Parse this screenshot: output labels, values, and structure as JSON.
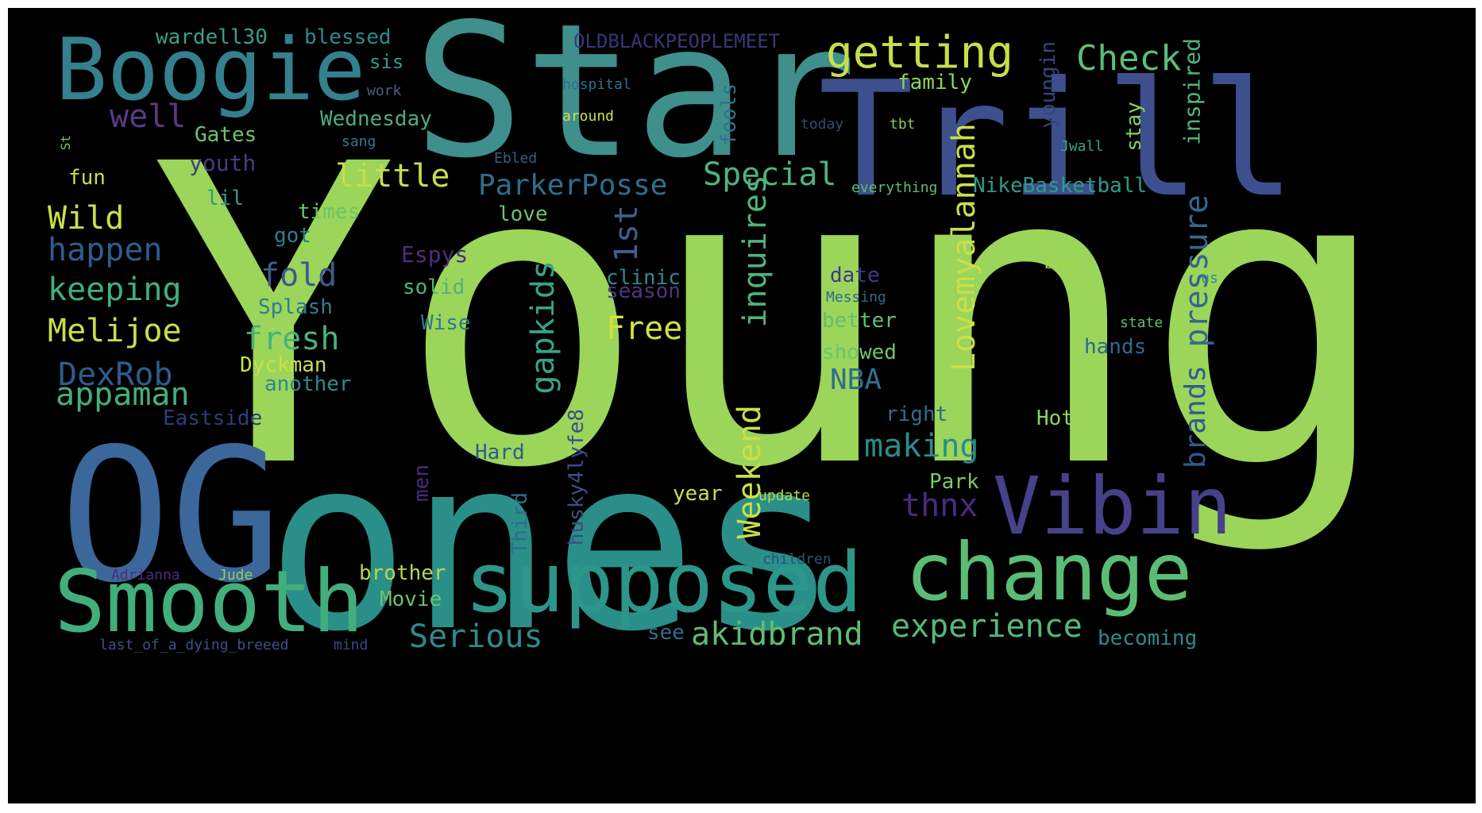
{
  "palette": {
    "page_background": "#ffffff",
    "cloud_background": "#000000"
  },
  "words": [
    {
      "text": "Young",
      "color": "#9bd55a"
    },
    {
      "text": "Star",
      "color": "#3f8f8c"
    },
    {
      "text": "Trill",
      "color": "#3d4f8c"
    },
    {
      "text": "ones",
      "color": "#2a8f88"
    },
    {
      "text": "OG",
      "color": "#3b679a"
    },
    {
      "text": "Boogie",
      "color": "#34808e"
    },
    {
      "text": "Smooth",
      "color": "#42ae7c"
    },
    {
      "text": "supposed",
      "color": "#2d968b"
    },
    {
      "text": "change",
      "color": "#5bbd75"
    },
    {
      "text": "Vibin",
      "color": "#46418a"
    },
    {
      "text": "getting",
      "color": "#c4df4a"
    },
    {
      "text": "Check",
      "color": "#5cbd78"
    },
    {
      "text": "inspired",
      "color": "#4fb57d"
    },
    {
      "text": "youngin",
      "color": "#36457f"
    },
    {
      "text": "OLDBLACKPEOPLEMEET",
      "color": "#3b3777"
    },
    {
      "text": "wardell30",
      "color": "#3a9e8a"
    },
    {
      "text": "blessed",
      "color": "#2e8a8c"
    },
    {
      "text": "sis",
      "color": "#339a8a"
    },
    {
      "text": "work",
      "color": "#4e5f8a"
    },
    {
      "text": "hospital",
      "color": "#2f6d8c"
    },
    {
      "text": "family",
      "color": "#8dd45e"
    },
    {
      "text": "around",
      "color": "#cce04a"
    },
    {
      "text": "tbt",
      "color": "#86cf60"
    },
    {
      "text": "today",
      "color": "#2d4d78"
    },
    {
      "text": "Jwall",
      "color": "#3aa585"
    },
    {
      "text": "stay",
      "color": "#83cf63"
    },
    {
      "text": "well",
      "color": "#5a3a83"
    },
    {
      "text": "Gates",
      "color": "#6dc46d"
    },
    {
      "text": "Wednesday",
      "color": "#49ad82"
    },
    {
      "text": "sang",
      "color": "#357a88"
    },
    {
      "text": "Ebled",
      "color": "#3a5e83"
    },
    {
      "text": "St",
      "color": "#7ec566"
    },
    {
      "text": "youth",
      "color": "#473c84"
    },
    {
      "text": "fun",
      "color": "#c8de4a"
    },
    {
      "text": "little",
      "color": "#c4df4a"
    },
    {
      "text": "ParkerPosse",
      "color": "#2e6e8e"
    },
    {
      "text": "Special",
      "color": "#4fb37e"
    },
    {
      "text": "fools",
      "color": "#32728c"
    },
    {
      "text": "everything",
      "color": "#5fbd72"
    },
    {
      "text": "NikeBasketball",
      "color": "#2e9a8a"
    },
    {
      "text": "lil",
      "color": "#339a8a"
    },
    {
      "text": "times",
      "color": "#6cc46e"
    },
    {
      "text": "Wild",
      "color": "#c9e04a"
    },
    {
      "text": "love",
      "color": "#6bc36e"
    },
    {
      "text": "got",
      "color": "#2a7f8e"
    },
    {
      "text": "happen",
      "color": "#2f5c8c"
    },
    {
      "text": "1st",
      "color": "#3f5f8e"
    },
    {
      "text": "inquires",
      "color": "#4fb37e"
    },
    {
      "text": "Lovemyalannah",
      "color": "#c9df4a"
    },
    {
      "text": "pressure",
      "color": "#35678c"
    },
    {
      "text": "keeping",
      "color": "#3fb07f"
    },
    {
      "text": "fold",
      "color": "#3d5a8c"
    },
    {
      "text": "Espys",
      "color": "#4b2e7d"
    },
    {
      "text": "gapkids",
      "color": "#35a487"
    },
    {
      "text": "clinic",
      "color": "#2b8b8c"
    },
    {
      "text": "season",
      "color": "#50367f"
    },
    {
      "text": "date",
      "color": "#3d3a86"
    },
    {
      "text": "bros",
      "color": "#a9d64d"
    },
    {
      "text": "us",
      "color": "#35888c"
    },
    {
      "text": "Messing",
      "color": "#2e6a8c"
    },
    {
      "text": "Melijoe",
      "color": "#c9df4a"
    },
    {
      "text": "Splash",
      "color": "#2f7e8e"
    },
    {
      "text": "fresh",
      "color": "#4ab27e"
    },
    {
      "text": "solid",
      "color": "#4cb47e"
    },
    {
      "text": "Wise",
      "color": "#2f7a8c"
    },
    {
      "text": "Free",
      "color": "#d4e23c"
    },
    {
      "text": "better",
      "color": "#62c16f"
    },
    {
      "text": "state",
      "color": "#5ebe71"
    },
    {
      "text": "hands",
      "color": "#2e6a8c"
    },
    {
      "text": "DexRob",
      "color": "#2f5c8c"
    },
    {
      "text": "Dyckman",
      "color": "#c9df4a"
    },
    {
      "text": "showed",
      "color": "#6cc46e"
    },
    {
      "text": "NBA",
      "color": "#2e6e8e"
    },
    {
      "text": "appaman",
      "color": "#46ae7e"
    },
    {
      "text": "another",
      "color": "#2e8a8c"
    },
    {
      "text": "brands",
      "color": "#2f5c8c"
    },
    {
      "text": "Eastside",
      "color": "#303c7a"
    },
    {
      "text": "right",
      "color": "#2f6d8c"
    },
    {
      "text": "Hot",
      "color": "#8dd35e"
    },
    {
      "text": "making",
      "color": "#2a8b8b"
    },
    {
      "text": "Weekend",
      "color": "#c9df4a"
    },
    {
      "text": "husky4lyfe8",
      "color": "#3d4d88"
    },
    {
      "text": "men",
      "color": "#4a2a7b"
    },
    {
      "text": "Hard",
      "color": "#2f5c8c"
    },
    {
      "text": "thnx",
      "color": "#4b2b7f"
    },
    {
      "text": "Park",
      "color": "#7dcb64"
    },
    {
      "text": "Third",
      "color": "#2e6d8c"
    },
    {
      "text": "year",
      "color": "#c9df4a"
    },
    {
      "text": "update",
      "color": "#b8d94b"
    },
    {
      "text": "children",
      "color": "#2d4f7c"
    },
    {
      "text": "Adrianna",
      "color": "#4b2e7d"
    },
    {
      "text": "Jude",
      "color": "#8dd35e"
    },
    {
      "text": "brother",
      "color": "#b6d94b"
    },
    {
      "text": "Movie",
      "color": "#6cc46e"
    },
    {
      "text": "experience",
      "color": "#55b97a"
    },
    {
      "text": "Serious",
      "color": "#2f8a8c"
    },
    {
      "text": "akidbrand",
      "color": "#5fbd72"
    },
    {
      "text": "see",
      "color": "#2e6e8e"
    },
    {
      "text": "becoming",
      "color": "#2f8a8c"
    },
    {
      "text": "last_of_a_dying_breeed",
      "color": "#3f4f8a"
    },
    {
      "text": "mind",
      "color": "#3a4a86"
    }
  ]
}
